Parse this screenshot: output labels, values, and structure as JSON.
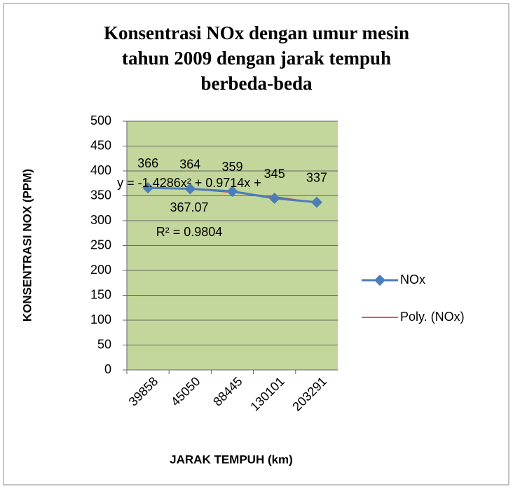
{
  "chart_data": {
    "type": "line",
    "title": [
      "Konsentrasi NOx dengan umur mesin",
      "tahun 2009 dengan jarak tempuh",
      "berbeda-beda"
    ],
    "x_label": "JARAK TEMPUH (km)",
    "y_label": "KONSENTRASI NOX (PPM)",
    "categories": [
      "39858",
      "45050",
      "88445",
      "130101",
      "203291"
    ],
    "series": [
      {
        "name": "NOx",
        "color": "#4a7ebb",
        "marker": "diamond",
        "data_labels": true,
        "values": [
          366,
          364,
          359,
          345,
          337
        ]
      },
      {
        "name": "Poly. (NOx)",
        "color": "#e31a1c",
        "marker": "none",
        "data_labels": false,
        "values": [
          366.6,
          363.3,
          357.1,
          348.1,
          336.2
        ]
      }
    ],
    "annotation": [
      "y = -1.4286x² + 0.9714x +",
      "367.07",
      "R² = 0.9804"
    ],
    "ylim": [
      0,
      500
    ],
    "yticks": [
      0,
      50,
      100,
      150,
      200,
      250,
      300,
      350,
      400,
      450,
      500
    ],
    "grid": true,
    "plot_background": "#c3d69b",
    "legend": "right"
  }
}
